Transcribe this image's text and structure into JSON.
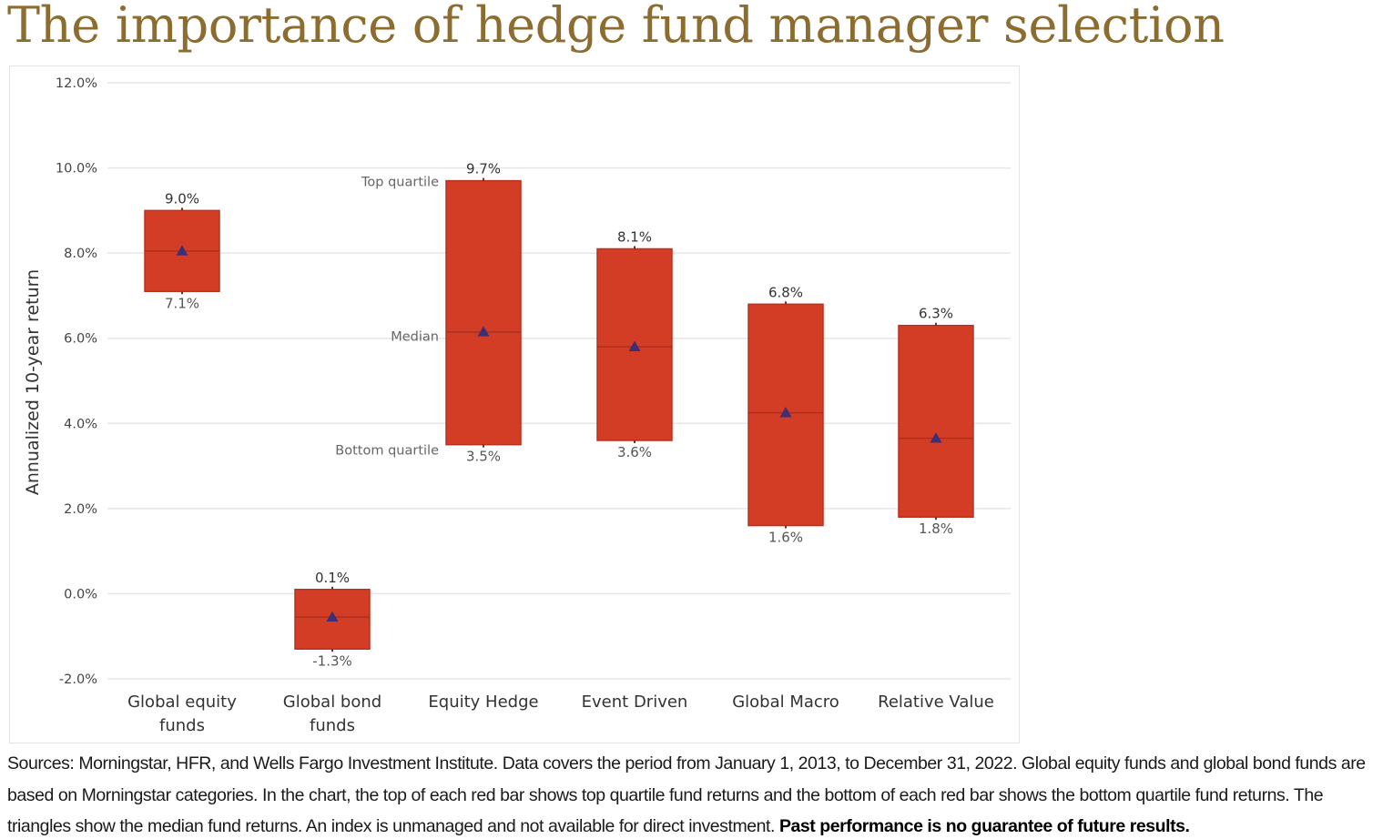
{
  "page": {
    "title": "The importance of hedge fund manager selection"
  },
  "chart_data": {
    "type": "bar",
    "subtype": "floating-range (top quartile to bottom quartile) with median markers",
    "ylabel": "Annualized 10-year return",
    "xlabel": "",
    "ylim": [
      -2.0,
      12.0
    ],
    "yticks": [
      -2.0,
      0.0,
      2.0,
      4.0,
      6.0,
      8.0,
      10.0,
      12.0
    ],
    "ytick_labels": [
      "-2.0%",
      "0.0%",
      "2.0%",
      "4.0%",
      "6.0%",
      "8.0%",
      "10.0%",
      "12.0%"
    ],
    "grid": "horizontal",
    "categories": [
      [
        "Global equity",
        "funds"
      ],
      [
        "Global bond",
        "funds"
      ],
      [
        "Equity Hedge"
      ],
      [
        "Event Driven"
      ],
      [
        "Global Macro"
      ],
      [
        "Relative Value"
      ]
    ],
    "top_quartile": [
      9.0,
      0.1,
      9.7,
      8.1,
      6.8,
      6.3
    ],
    "bottom_quartile": [
      7.1,
      -1.3,
      3.5,
      3.6,
      1.6,
      1.8
    ],
    "median": [
      8.05,
      -0.55,
      6.15,
      5.8,
      4.25,
      3.65
    ],
    "top_labels": [
      "9.0%",
      "0.1%",
      "9.7%",
      "8.1%",
      "6.8%",
      "6.3%"
    ],
    "bottom_labels": [
      "7.1%",
      "-1.3%",
      "3.5%",
      "3.6%",
      "1.6%",
      "1.8%"
    ],
    "annotations": {
      "top": "Top quartile",
      "median": "Median",
      "bottom": "Bottom quartile",
      "category_index": 2
    },
    "colors": {
      "bar": "#d43d25",
      "bar_edge": "#b83220",
      "median_marker": "#3b3075",
      "grid": "#e6e6e6",
      "axis_text": "#444444",
      "value_text": "#333333",
      "annotation_text": "#666666"
    }
  },
  "footnote": {
    "text": "Sources: Morningstar, HFR, and Wells Fargo Investment Institute. Data covers the period from January 1, 2013, to December 31, 2022. Global equity funds and global bond funds are based on Morningstar categories. In the chart, the top of each red bar shows top quartile fund returns and the bottom of each red bar shows the bottom quartile fund returns. The triangles show the median fund returns. An index is unmanaged and not available for direct investment.",
    "bold": "Past performance is no guarantee of future results."
  }
}
